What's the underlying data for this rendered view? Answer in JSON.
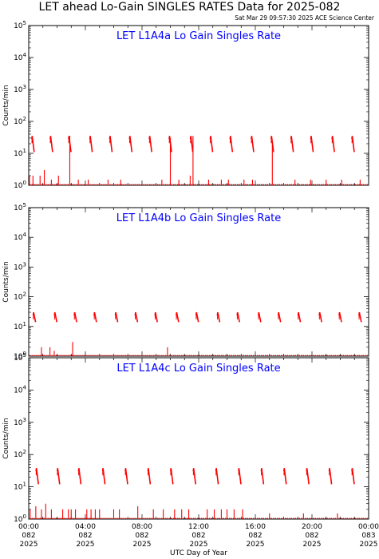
{
  "page": {
    "title": "LET ahead Lo-Gain SINGLES RATES Data for 2025-082",
    "timestamp": "Sat Mar 29 09:57:30 2025 ACE Science Center"
  },
  "colors": {
    "data": "#ff0000",
    "panel_title": "#0000ff",
    "axes": "#000000"
  },
  "chart_data": [
    {
      "type": "line",
      "title": "LET L1A4a Lo Gain Singles Rate",
      "ylabel": "Counts/min",
      "y_scale": "log",
      "ylim": [
        1,
        100000
      ],
      "y_ticks": [
        "10^0",
        "10^1",
        "10^2",
        "10^3",
        "10^4",
        "10^5"
      ],
      "xlim": [
        0,
        24
      ],
      "x_ticks": [
        0,
        4,
        8,
        12,
        16,
        20,
        24
      ],
      "x_tick_labels": [],
      "xlabel": "",
      "spikes": {
        "hours": [
          0.3,
          1.6,
          2.9,
          4.4,
          5.8,
          7.2,
          8.6,
          10.0,
          11.5,
          12.9,
          14.3,
          15.8,
          17.2,
          18.6,
          20.0,
          21.5,
          22.9
        ],
        "peak": 35,
        "trough": 11
      },
      "baseline": 1,
      "low_events": [
        {
          "hour": 0.05,
          "value": 2
        },
        {
          "hour": 0.3,
          "value": 2
        },
        {
          "hour": 0.8,
          "value": 2
        },
        {
          "hour": 1.1,
          "value": 3
        },
        {
          "hour": 1.6,
          "value": 1.5
        },
        {
          "hour": 2.1,
          "value": 2
        },
        {
          "hour": 2.9,
          "value": 35
        },
        {
          "hour": 3.5,
          "value": 1.5
        },
        {
          "hour": 4.2,
          "value": 1.5
        },
        {
          "hour": 5.6,
          "value": 1.5
        },
        {
          "hour": 6.5,
          "value": 1.5
        },
        {
          "hour": 9.4,
          "value": 1.5
        },
        {
          "hour": 10.0,
          "value": 30
        },
        {
          "hour": 10.6,
          "value": 1.5
        },
        {
          "hour": 11.4,
          "value": 2
        },
        {
          "hour": 11.6,
          "value": 35
        },
        {
          "hour": 12.7,
          "value": 1.5
        },
        {
          "hour": 13.6,
          "value": 1.5
        },
        {
          "hour": 14.1,
          "value": 1.5
        },
        {
          "hour": 15.2,
          "value": 1.5
        },
        {
          "hour": 15.8,
          "value": 1.5
        },
        {
          "hour": 17.2,
          "value": 20
        },
        {
          "hour": 18.8,
          "value": 1.5
        },
        {
          "hour": 19.9,
          "value": 1.5
        },
        {
          "hour": 21.0,
          "value": 1.5
        },
        {
          "hour": 22.1,
          "value": 1.5
        },
        {
          "hour": 23.4,
          "value": 1.5
        }
      ]
    },
    {
      "type": "line",
      "title": "LET L1A4b Lo Gain Singles Rate",
      "ylabel": "Counts/min",
      "y_scale": "log",
      "ylim": [
        1,
        100000
      ],
      "y_ticks": [
        "10^0",
        "10^1",
        "10^2",
        "10^3",
        "10^4",
        "10^5"
      ],
      "xlim": [
        0,
        24
      ],
      "x_ticks": [
        0,
        4,
        8,
        12,
        16,
        20,
        24
      ],
      "x_tick_labels": [],
      "xlabel": "",
      "spikes": {
        "hours": [
          0.4,
          1.9,
          3.3,
          4.7,
          6.2,
          7.6,
          9.0,
          10.5,
          11.9,
          13.4,
          14.8,
          16.3,
          17.7,
          19.1,
          20.6,
          22.0,
          23.4
        ],
        "peak": 30,
        "trough": 14
      },
      "baseline": 1,
      "low_events": [
        {
          "hour": 0.9,
          "value": 2
        },
        {
          "hour": 1.5,
          "value": 2
        },
        {
          "hour": 1.8,
          "value": 1.5
        },
        {
          "hour": 3.1,
          "value": 3
        },
        {
          "hour": 9.8,
          "value": 2
        }
      ]
    },
    {
      "type": "line",
      "title": "LET L1A4c Lo Gain Singles Rate",
      "ylabel": "Counts/min",
      "y_scale": "log",
      "ylim": [
        1,
        100000
      ],
      "y_ticks": [
        "10^0",
        "10^1",
        "10^2",
        "10^3",
        "10^4",
        "10^5"
      ],
      "xlim": [
        0,
        24
      ],
      "x_ticks": [
        0,
        4,
        8,
        12,
        16,
        20,
        24
      ],
      "x_tick_labels": [
        [
          "00:00",
          "082",
          "2025"
        ],
        [
          "04:00",
          "082",
          "2025"
        ],
        [
          "08:00",
          "082",
          "2025"
        ],
        [
          "12:00",
          "082",
          "2025"
        ],
        [
          "16:00",
          "082",
          "2025"
        ],
        [
          "20:00",
          "082",
          "2025"
        ],
        [
          "00:00",
          "083",
          "2025"
        ]
      ],
      "xlabel": "UTC Day of Year",
      "spikes": {
        "hours": [
          0.6,
          2.1,
          3.6,
          5.3,
          6.9,
          8.5,
          10.1,
          11.7,
          13.3,
          14.9,
          16.5,
          18.1,
          19.7,
          21.3,
          22.9
        ],
        "peak": 38,
        "trough": 12
      },
      "baseline": 1,
      "low_events": [
        {
          "hour": 0.1,
          "value": 2
        },
        {
          "hour": 0.5,
          "value": 2.5
        },
        {
          "hour": 0.9,
          "value": 2
        },
        {
          "hour": 1.2,
          "value": 3
        },
        {
          "hour": 1.6,
          "value": 2
        },
        {
          "hour": 2.4,
          "value": 2
        },
        {
          "hour": 2.8,
          "value": 2
        },
        {
          "hour": 3.0,
          "value": 2
        },
        {
          "hour": 3.3,
          "value": 2
        },
        {
          "hour": 4.1,
          "value": 2
        },
        {
          "hour": 4.4,
          "value": 2
        },
        {
          "hour": 4.7,
          "value": 2
        },
        {
          "hour": 5.0,
          "value": 2
        },
        {
          "hour": 6.0,
          "value": 2
        },
        {
          "hour": 6.4,
          "value": 2
        },
        {
          "hour": 7.7,
          "value": 2.5
        },
        {
          "hour": 8.8,
          "value": 2
        },
        {
          "hour": 9.5,
          "value": 2
        },
        {
          "hour": 10.3,
          "value": 2
        },
        {
          "hour": 10.8,
          "value": 2
        },
        {
          "hour": 11.3,
          "value": 2
        },
        {
          "hour": 12.6,
          "value": 2
        },
        {
          "hour": 13.1,
          "value": 2
        },
        {
          "hour": 13.6,
          "value": 2
        },
        {
          "hour": 14.0,
          "value": 2
        },
        {
          "hour": 14.5,
          "value": 2
        },
        {
          "hour": 15.1,
          "value": 2
        },
        {
          "hour": 17.0,
          "value": 1.5
        },
        {
          "hour": 19.4,
          "value": 1.5
        },
        {
          "hour": 21.8,
          "value": 1.5
        }
      ]
    }
  ]
}
